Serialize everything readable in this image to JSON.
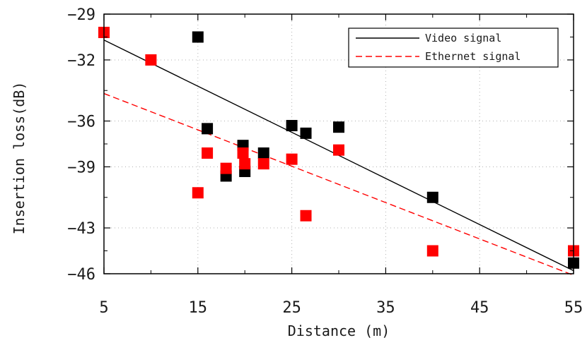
{
  "chart_data": {
    "type": "scatter",
    "xlabel": "Distance (m)",
    "ylabel": "Insertion loss(dB)",
    "xlim": [
      5,
      55
    ],
    "ylim": [
      -46,
      -29
    ],
    "xticks": [
      5,
      15,
      25,
      35,
      45,
      55
    ],
    "yticks": [
      -29,
      -32,
      -36,
      -39,
      -43,
      -46
    ],
    "grid": true,
    "legend_position": "top-right",
    "series": [
      {
        "name": "Video signal",
        "color": "#000000",
        "line_style": "solid",
        "marker": "square",
        "points": [
          [
            5,
            -30.2
          ],
          [
            15,
            -30.5
          ],
          [
            16,
            -36.5
          ],
          [
            19.8,
            -37.6
          ],
          [
            20,
            -39.3
          ],
          [
            18,
            -39.6
          ],
          [
            22,
            -38.1
          ],
          [
            25,
            -36.3
          ],
          [
            26.5,
            -36.8
          ],
          [
            30,
            -36.4
          ],
          [
            40,
            -41.0
          ],
          [
            55,
            -45.3
          ]
        ],
        "fit": [
          [
            5,
            -30.7
          ],
          [
            55,
            -45.8
          ]
        ]
      },
      {
        "name": "Ethernet signal",
        "color": "#ff0000",
        "line_style": "dashed",
        "marker": "square",
        "points": [
          [
            5,
            -30.2
          ],
          [
            10,
            -32.0
          ],
          [
            15,
            -40.7
          ],
          [
            16,
            -38.1
          ],
          [
            18,
            -39.1
          ],
          [
            19.8,
            -38.1
          ],
          [
            20,
            -38.8
          ],
          [
            22,
            -38.8
          ],
          [
            25,
            -38.5
          ],
          [
            26.5,
            -42.2
          ],
          [
            30,
            -37.9
          ],
          [
            40,
            -44.5
          ],
          [
            55,
            -44.5
          ]
        ],
        "fit": [
          [
            5,
            -34.2
          ],
          [
            55,
            -46.1
          ]
        ]
      }
    ]
  }
}
